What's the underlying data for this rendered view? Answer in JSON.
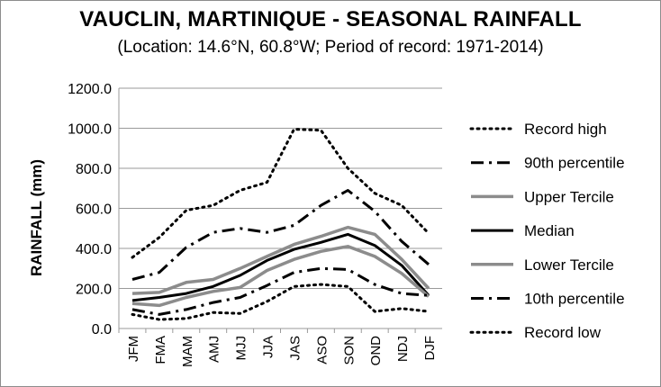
{
  "chart_data": {
    "type": "line",
    "title": "VAUCLIN, MARTINIQUE - SEASONAL RAINFALL",
    "subtitle": "(Location: 14.6°N, 60.8°W; Period of record: 1971-2014)",
    "xlabel": "",
    "ylabel": "RAINFALL (mm)",
    "ylim": [
      0,
      1200
    ],
    "yticks": [
      "0.0",
      "200.0",
      "400.0",
      "600.0",
      "800.0",
      "1000.0",
      "1200.0"
    ],
    "grid": "horizontal",
    "legend_position": "right",
    "categories": [
      "JFM",
      "FMA",
      "MAM",
      "AMJ",
      "MJJ",
      "JJA",
      "JAS",
      "ASO",
      "SON",
      "OND",
      "NDJ",
      "DJF"
    ],
    "series": [
      {
        "name": "Record high",
        "color": "#000000",
        "style": "dotted",
        "values": [
          355,
          455,
          590,
          615,
          690,
          730,
          995,
          990,
          800,
          675,
          615,
          475
        ]
      },
      {
        "name": "90th percentile",
        "color": "#000000",
        "style": "dashdot",
        "values": [
          245,
          280,
          405,
          480,
          500,
          480,
          515,
          615,
          690,
          585,
          435,
          320
        ]
      },
      {
        "name": "Upper Tercile",
        "color": "#8c8c8c",
        "style": "solid",
        "values": [
          175,
          180,
          230,
          245,
          300,
          360,
          420,
          460,
          505,
          470,
          345,
          200
        ]
      },
      {
        "name": "Median",
        "color": "#000000",
        "style": "solid",
        "values": [
          140,
          155,
          175,
          210,
          265,
          340,
          395,
          430,
          470,
          415,
          315,
          165
        ]
      },
      {
        "name": "Lower Tercile",
        "color": "#8c8c8c",
        "style": "solid",
        "values": [
          125,
          115,
          155,
          185,
          205,
          290,
          345,
          385,
          410,
          360,
          275,
          160
        ]
      },
      {
        "name": "10th percentile",
        "color": "#000000",
        "style": "dashdot",
        "values": [
          95,
          70,
          95,
          130,
          155,
          215,
          280,
          300,
          295,
          220,
          175,
          165
        ]
      },
      {
        "name": "Record low",
        "color": "#000000",
        "style": "dotted",
        "values": [
          70,
          45,
          50,
          80,
          75,
          135,
          210,
          220,
          210,
          85,
          100,
          85
        ]
      }
    ]
  }
}
